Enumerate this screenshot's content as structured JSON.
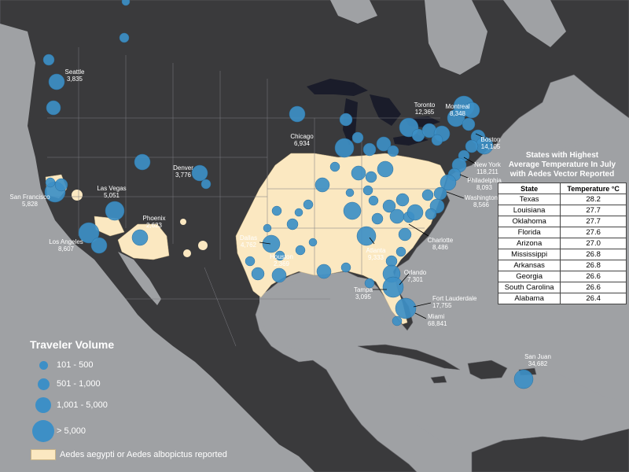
{
  "legend": {
    "title": "Traveler Volume",
    "items": [
      {
        "label": "101 - 500"
      },
      {
        "label": "501 - 1,000"
      },
      {
        "label": "1,001 - 5,000"
      },
      {
        "label": "> 5,000"
      }
    ],
    "region_label": "Aedes aegypti or Aedes albopictus reported"
  },
  "colors": {
    "circle": "#3d8fc6",
    "vector_region": "#fbe8c1",
    "land": "#3a3a3c",
    "water": "#9fa1a4",
    "lakes": "#1a1c2a"
  },
  "cities": [
    {
      "name": "Seattle",
      "value": "3,835"
    },
    {
      "name": "Montreal",
      "value": "8,348"
    },
    {
      "name": "Toronto",
      "value": "12,365"
    },
    {
      "name": "Boston",
      "value": "14,105"
    },
    {
      "name": "Chicago",
      "value": "6,934"
    },
    {
      "name": "New York",
      "value": "118,211"
    },
    {
      "name": "Philadelphia",
      "value": "8,093"
    },
    {
      "name": "Washington",
      "value": "8,566"
    },
    {
      "name": "Denver",
      "value": "3,776"
    },
    {
      "name": "San Francisco",
      "value": "5,828"
    },
    {
      "name": "Las Vegas",
      "value": "5,051"
    },
    {
      "name": "Phoenix",
      "value": "2,623"
    },
    {
      "name": "Los Angeles",
      "value": "8,607"
    },
    {
      "name": "Dallas",
      "value": "4,762"
    },
    {
      "name": "Houston",
      "value": "2,369"
    },
    {
      "name": "Atlanta",
      "value": "9,333"
    },
    {
      "name": "Charlotte",
      "value": "8,486"
    },
    {
      "name": "Orlando",
      "value": "7,301"
    },
    {
      "name": "Tampa",
      "value": "3,095"
    },
    {
      "name": "Fort Lauderdale",
      "value": "17,755"
    },
    {
      "name": "Miami",
      "value": "68,841"
    },
    {
      "name": "San Juan",
      "value": "34,682"
    }
  ],
  "table": {
    "title_line1": "States with Highest",
    "title_line2": "Average Temperature In July",
    "title_line3": "with Aedes Vector Reported",
    "col_state": "State",
    "col_temp": "Temperature °C",
    "rows": [
      {
        "state": "Texas",
        "temp": "28.2"
      },
      {
        "state": "Louisiana",
        "temp": "27.7"
      },
      {
        "state": "Oklahoma",
        "temp": "27.7"
      },
      {
        "state": "Florida",
        "temp": "27.6"
      },
      {
        "state": "Arizona",
        "temp": "27.0"
      },
      {
        "state": "Mississippi",
        "temp": "26.8"
      },
      {
        "state": "Arkansas",
        "temp": "26.8"
      },
      {
        "state": "Georgia",
        "temp": "26.6"
      },
      {
        "state": "South Carolina",
        "temp": "26.6"
      },
      {
        "state": "Alabama",
        "temp": "26.4"
      }
    ]
  }
}
